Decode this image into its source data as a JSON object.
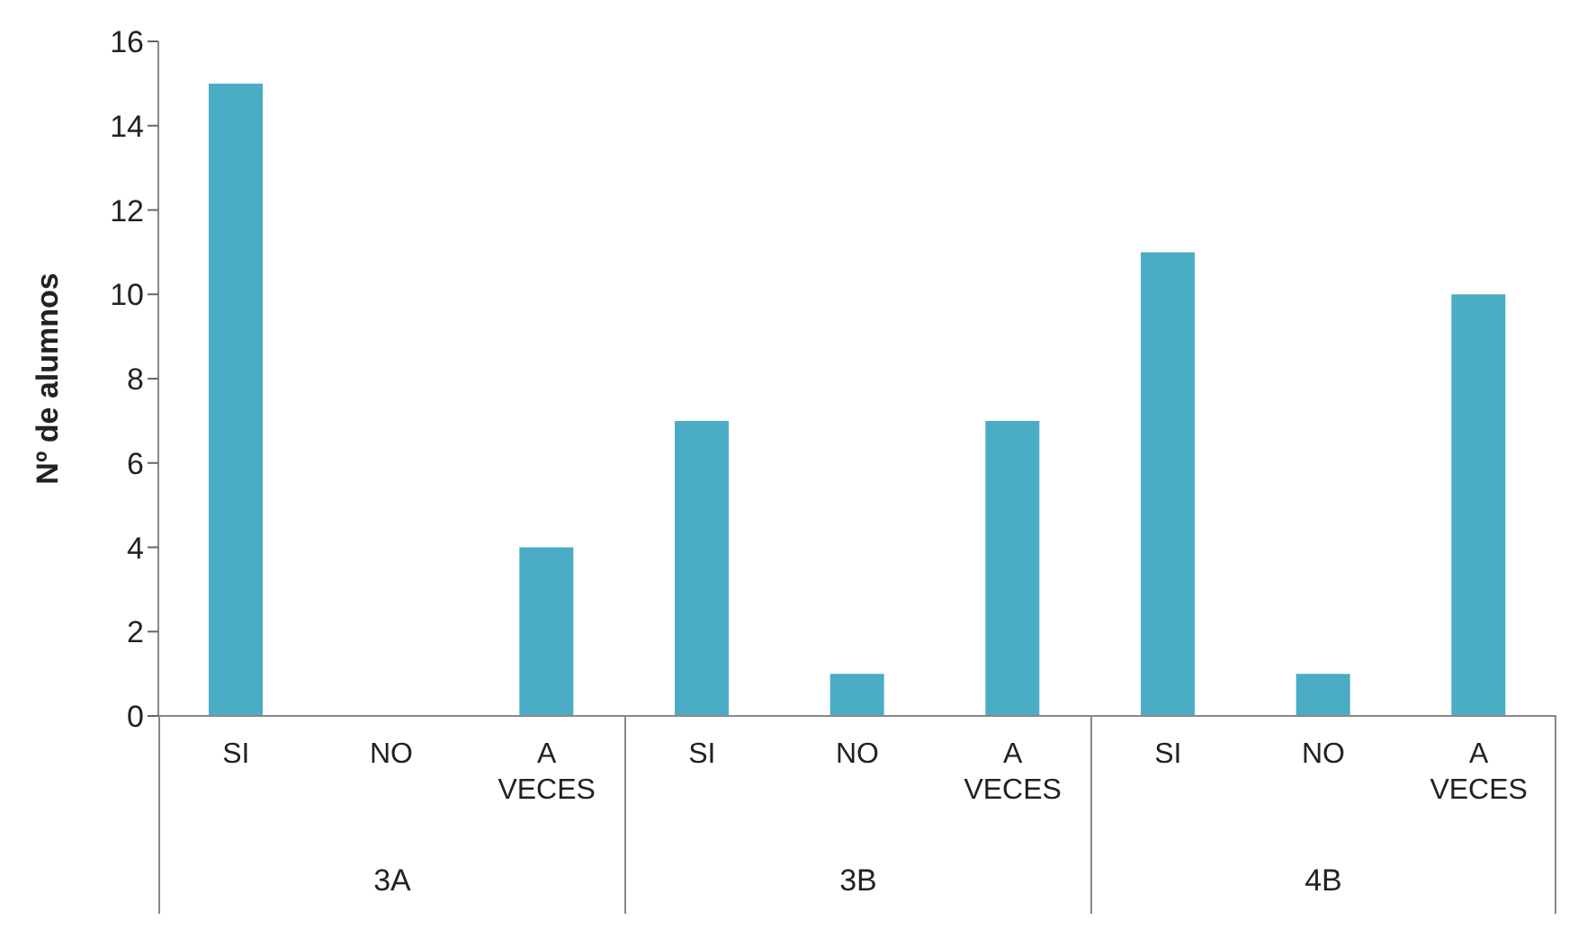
{
  "chart_data": {
    "type": "bar",
    "ylabel": "Nº de alumnos",
    "categories": [
      "SI",
      "NO",
      "A VECES",
      "SI",
      "NO",
      "A VECES",
      "SI",
      "NO",
      "A VECES"
    ],
    "values": [
      15,
      0,
      4,
      7,
      1,
      7,
      11,
      1,
      10
    ],
    "color": "#4bacc6",
    "ylim": [
      0,
      16
    ],
    "yticks": [
      0,
      2,
      4,
      6,
      8,
      10,
      12,
      14,
      16
    ],
    "grid": false,
    "annotations": [
      "3A",
      "3B",
      "4B"
    ]
  }
}
